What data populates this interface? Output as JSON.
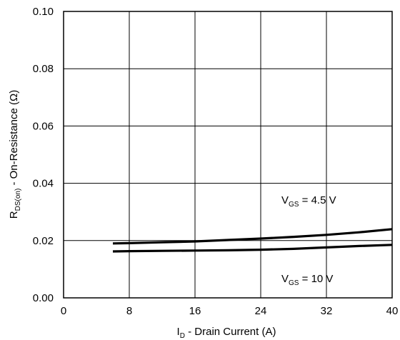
{
  "chart_data": {
    "type": "line",
    "xlabel": {
      "main": "I",
      "sub": "D",
      "rest": " - Drain Current (A)"
    },
    "ylabel": {
      "main": "R",
      "sub": "DS(on)",
      "rest": " - On-Resistance (Ω)"
    },
    "xlim": [
      0,
      40
    ],
    "ylim": [
      0,
      0.1
    ],
    "x_ticks": [
      "0",
      "8",
      "16",
      "24",
      "32",
      "40"
    ],
    "x_tick_values": [
      0,
      8,
      16,
      24,
      32,
      40
    ],
    "y_ticks": [
      "0.00",
      "0.02",
      "0.04",
      "0.06",
      "0.08",
      "0.10"
    ],
    "y_tick_values": [
      0,
      0.02,
      0.04,
      0.06,
      0.08,
      0.1
    ],
    "grid": true,
    "series": [
      {
        "name": "VGS = 4.5 V",
        "label": {
          "main": "V",
          "sub": "GS",
          "rest": " = 4.5 V"
        },
        "x": [
          6,
          8,
          12,
          16,
          20,
          24,
          28,
          32,
          36,
          40
        ],
        "values": [
          0.019,
          0.0191,
          0.0194,
          0.0197,
          0.0202,
          0.0207,
          0.0213,
          0.022,
          0.0229,
          0.024
        ]
      },
      {
        "name": "VGS = 10 V",
        "label": {
          "main": "V",
          "sub": "GS",
          "rest": " = 10 V"
        },
        "x": [
          6,
          8,
          12,
          16,
          20,
          24,
          28,
          32,
          36,
          40
        ],
        "values": [
          0.0162,
          0.0163,
          0.0164,
          0.0165,
          0.0166,
          0.0168,
          0.0171,
          0.0176,
          0.0181,
          0.0185
        ]
      }
    ]
  }
}
